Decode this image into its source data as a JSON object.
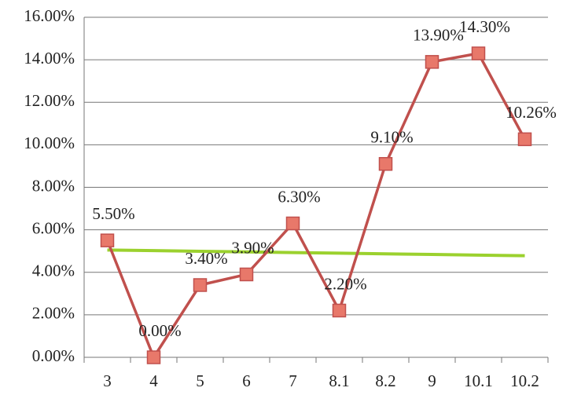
{
  "chart_data": {
    "type": "line",
    "categories": [
      "3",
      "4",
      "5",
      "6",
      "7",
      "8.1",
      "8.2",
      "9",
      "10.1",
      "10.2"
    ],
    "series": [
      {
        "color": "#c0504d",
        "marker_color": "#e8786a",
        "values": [
          5.5,
          0,
          3.4,
          3.9,
          6.3,
          2.2,
          9.1,
          13.9,
          14.3,
          10.26
        ],
        "value_labels": [
          "5.50%",
          "0.00%",
          "3.40%",
          "3.90%",
          "6.30%",
          "2.20%",
          "9.10%",
          "13.90%",
          "14.30%",
          "10.26%"
        ]
      },
      {
        "color": "#9bd12e",
        "values": [
          5.05,
          5.02,
          4.99,
          4.96,
          4.93,
          4.9,
          4.87,
          4.84,
          4.81,
          4.78
        ]
      }
    ],
    "ylim": [
      0,
      16
    ],
    "yticks": [
      {
        "value": 0,
        "label": "0.00%"
      },
      {
        "value": 2,
        "label": "2.00%"
      },
      {
        "value": 4,
        "label": "4.00%"
      },
      {
        "value": 6,
        "label": "6.00%"
      },
      {
        "value": 8,
        "label": "8.00%"
      },
      {
        "value": 10,
        "label": "10.00%"
      },
      {
        "value": 12,
        "label": "12.00%"
      },
      {
        "value": 14,
        "label": "14.00%"
      },
      {
        "value": 16,
        "label": "16.00%"
      }
    ],
    "grid": true
  }
}
